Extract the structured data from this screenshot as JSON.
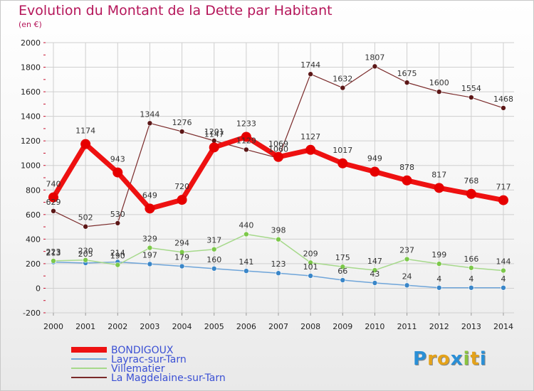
{
  "header": {
    "title": "Evolution du Montant de la Dette par Habitant",
    "subtitle": "(en €)"
  },
  "logo": {
    "text": "Proxiti",
    "letters": [
      "P",
      "r",
      "o",
      "x",
      "i",
      "t",
      "i"
    ],
    "colors": [
      "#2a8fd6",
      "#e4a21a",
      "#e4a21a",
      "#2a8fd6",
      "#8bc43f",
      "#e4a21a",
      "#2a8fd6"
    ]
  },
  "colors": {
    "title": "#b5165a",
    "grid": "#cfcfcf",
    "axis_tick": "#c8102e"
  },
  "chart_data": {
    "type": "line",
    "title": "Evolution du Montant de la Dette par Habitant",
    "subtitle": "(en €)",
    "xlabel": "",
    "ylabel": "",
    "ylim": [
      -200,
      2000
    ],
    "yticks": [
      -200,
      0,
      200,
      400,
      600,
      800,
      1000,
      1200,
      1400,
      1600,
      1800,
      2000
    ],
    "grid": true,
    "legend_position": "bottom-left",
    "x": [
      "2000",
      "2001",
      "2002",
      "2003",
      "2004",
      "2005",
      "2006",
      "2007",
      "2008",
      "2009",
      "2010",
      "2011",
      "2012",
      "2013",
      "2014"
    ],
    "series": [
      {
        "name": "BONDIGOUX",
        "color": "#ee1111",
        "point_color": "#e60000",
        "width": 7,
        "radius": 7,
        "values": [
          740,
          1174,
          943,
          649,
          720,
          1147,
          1233,
          1069,
          1127,
          1017,
          949,
          878,
          817,
          768,
          717
        ]
      },
      {
        "name": "Layrac-sur-Tarn",
        "color": "#6fa5d9",
        "point_color": "#3a86c8",
        "width": 1.5,
        "radius": 3.5,
        "values": [
          213,
          205,
          214,
          197,
          179,
          160,
          141,
          123,
          101,
          66,
          43,
          24,
          4,
          4,
          4
        ]
      },
      {
        "name": "Villematier",
        "color": "#a6d98b",
        "point_color": "#7cc84a",
        "width": 1.5,
        "radius": 3.5,
        "values": [
          223,
          230,
          190,
          329,
          294,
          317,
          440,
          398,
          209,
          175,
          147,
          237,
          199,
          166,
          144
        ]
      },
      {
        "name": "La Magdelaine-sur-Tarn",
        "color": "#7a2a2a",
        "point_color": "#5c1717",
        "width": 1.2,
        "radius": 3.5,
        "values": [
          629,
          502,
          530,
          1344,
          1276,
          1201,
          1129,
          1060,
          1744,
          1632,
          1807,
          1675,
          1600,
          1554,
          1468
        ]
      }
    ]
  }
}
